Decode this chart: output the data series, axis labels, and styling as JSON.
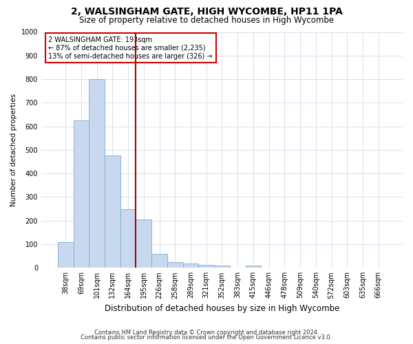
{
  "title_line1": "2, WALSINGHAM GATE, HIGH WYCOMBE, HP11 1PA",
  "title_line2": "Size of property relative to detached houses in High Wycombe",
  "xlabel": "Distribution of detached houses by size in High Wycombe",
  "ylabel": "Number of detached properties",
  "bar_color": "#c8d9ef",
  "bar_edge_color": "#7aaad0",
  "vline_color": "#aa0000",
  "vline_x_index": 5,
  "annotation_text": "2 WALSINGHAM GATE: 193sqm\n← 87% of detached houses are smaller (2,235)\n13% of semi-detached houses are larger (326) →",
  "annotation_box_color": "#cc0000",
  "categories": [
    "38sqm",
    "69sqm",
    "101sqm",
    "132sqm",
    "164sqm",
    "195sqm",
    "226sqm",
    "258sqm",
    "289sqm",
    "321sqm",
    "352sqm",
    "383sqm",
    "415sqm",
    "446sqm",
    "478sqm",
    "509sqm",
    "540sqm",
    "572sqm",
    "603sqm",
    "635sqm",
    "666sqm"
  ],
  "values": [
    110,
    625,
    800,
    475,
    250,
    205,
    60,
    25,
    18,
    12,
    10,
    0,
    10,
    0,
    0,
    0,
    0,
    0,
    0,
    0,
    0
  ],
  "ylim": [
    0,
    1000
  ],
  "yticks": [
    0,
    100,
    200,
    300,
    400,
    500,
    600,
    700,
    800,
    900,
    1000
  ],
  "footer_line1": "Contains HM Land Registry data © Crown copyright and database right 2024.",
  "footer_line2": "Contains public sector information licensed under the Open Government Licence v3.0.",
  "background_color": "#ffffff",
  "grid_color": "#c8d4e8",
  "title1_fontsize": 10,
  "title2_fontsize": 8.5,
  "ylabel_fontsize": 7.5,
  "xlabel_fontsize": 8.5,
  "tick_fontsize": 7,
  "annotation_fontsize": 7,
  "footer_fontsize": 6
}
